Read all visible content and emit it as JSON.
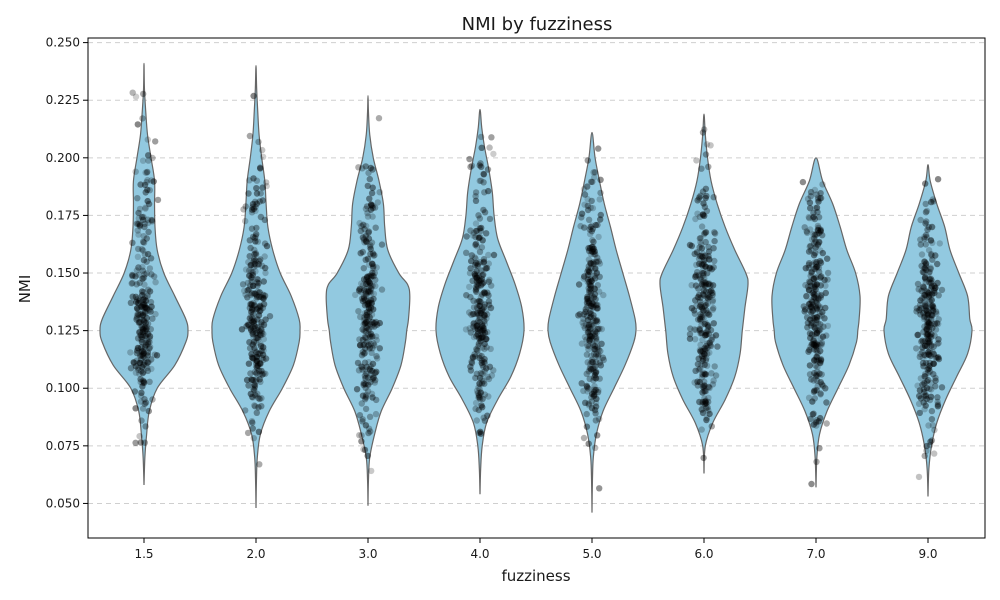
{
  "chart_data": {
    "type": "violin",
    "title": "NMI by fuzziness",
    "xlabel": "fuzziness",
    "ylabel": "NMI",
    "categories": [
      "1.5",
      "2.0",
      "3.0",
      "4.0",
      "5.0",
      "6.0",
      "7.0",
      "9.0"
    ],
    "ylim": [
      0.035,
      0.252
    ],
    "yticks": [
      0.05,
      0.075,
      0.1,
      0.125,
      0.15,
      0.175,
      0.2,
      0.225,
      0.25
    ],
    "grid": "y-dashed",
    "violin_color": "#92c9e0",
    "violin_edge_color": "#666666",
    "point_color": "#000000",
    "violins": [
      {
        "category": "1.5",
        "min": 0.058,
        "max": 0.241,
        "profile": [
          [
            0.058,
            0.0
          ],
          [
            0.07,
            0.02
          ],
          [
            0.08,
            0.06
          ],
          [
            0.09,
            0.12
          ],
          [
            0.1,
            0.3
          ],
          [
            0.11,
            0.7
          ],
          [
            0.12,
            0.95
          ],
          [
            0.125,
            1.0
          ],
          [
            0.13,
            0.95
          ],
          [
            0.14,
            0.7
          ],
          [
            0.15,
            0.45
          ],
          [
            0.16,
            0.3
          ],
          [
            0.17,
            0.25
          ],
          [
            0.18,
            0.24
          ],
          [
            0.19,
            0.24
          ],
          [
            0.2,
            0.16
          ],
          [
            0.21,
            0.08
          ],
          [
            0.22,
            0.04
          ],
          [
            0.23,
            0.01
          ],
          [
            0.241,
            0.0
          ]
        ]
      },
      {
        "category": "2.0",
        "min": 0.048,
        "max": 0.24,
        "profile": [
          [
            0.048,
            0.0
          ],
          [
            0.06,
            0.01
          ],
          [
            0.07,
            0.03
          ],
          [
            0.08,
            0.1
          ],
          [
            0.09,
            0.3
          ],
          [
            0.1,
            0.6
          ],
          [
            0.11,
            0.85
          ],
          [
            0.12,
            0.98
          ],
          [
            0.125,
            1.0
          ],
          [
            0.13,
            0.98
          ],
          [
            0.14,
            0.8
          ],
          [
            0.15,
            0.55
          ],
          [
            0.16,
            0.38
          ],
          [
            0.17,
            0.27
          ],
          [
            0.18,
            0.23
          ],
          [
            0.19,
            0.2
          ],
          [
            0.2,
            0.13
          ],
          [
            0.21,
            0.07
          ],
          [
            0.22,
            0.04
          ],
          [
            0.23,
            0.015
          ],
          [
            0.24,
            0.0
          ]
        ]
      },
      {
        "category": "3.0",
        "min": 0.049,
        "max": 0.227,
        "profile": [
          [
            0.049,
            0.0
          ],
          [
            0.06,
            0.01
          ],
          [
            0.07,
            0.04
          ],
          [
            0.08,
            0.15
          ],
          [
            0.09,
            0.3
          ],
          [
            0.1,
            0.55
          ],
          [
            0.11,
            0.75
          ],
          [
            0.12,
            0.85
          ],
          [
            0.125,
            0.88
          ],
          [
            0.13,
            0.92
          ],
          [
            0.14,
            0.95
          ],
          [
            0.145,
            0.9
          ],
          [
            0.15,
            0.7
          ],
          [
            0.16,
            0.45
          ],
          [
            0.17,
            0.38
          ],
          [
            0.18,
            0.35
          ],
          [
            0.19,
            0.25
          ],
          [
            0.2,
            0.12
          ],
          [
            0.21,
            0.04
          ],
          [
            0.22,
            0.01
          ],
          [
            0.227,
            0.0
          ]
        ]
      },
      {
        "category": "4.0",
        "min": 0.054,
        "max": 0.221,
        "profile": [
          [
            0.054,
            0.0
          ],
          [
            0.065,
            0.015
          ],
          [
            0.075,
            0.05
          ],
          [
            0.085,
            0.15
          ],
          [
            0.095,
            0.4
          ],
          [
            0.105,
            0.7
          ],
          [
            0.115,
            0.9
          ],
          [
            0.125,
            1.0
          ],
          [
            0.135,
            0.95
          ],
          [
            0.145,
            0.8
          ],
          [
            0.155,
            0.6
          ],
          [
            0.165,
            0.4
          ],
          [
            0.175,
            0.32
          ],
          [
            0.185,
            0.28
          ],
          [
            0.195,
            0.2
          ],
          [
            0.205,
            0.1
          ],
          [
            0.213,
            0.04
          ],
          [
            0.221,
            0.0
          ]
        ]
      },
      {
        "category": "5.0",
        "min": 0.046,
        "max": 0.211,
        "profile": [
          [
            0.046,
            0.0
          ],
          [
            0.06,
            0.01
          ],
          [
            0.07,
            0.03
          ],
          [
            0.08,
            0.1
          ],
          [
            0.09,
            0.25
          ],
          [
            0.1,
            0.5
          ],
          [
            0.11,
            0.75
          ],
          [
            0.12,
            0.95
          ],
          [
            0.125,
            1.0
          ],
          [
            0.13,
            0.98
          ],
          [
            0.14,
            0.85
          ],
          [
            0.15,
            0.7
          ],
          [
            0.16,
            0.55
          ],
          [
            0.17,
            0.42
          ],
          [
            0.18,
            0.28
          ],
          [
            0.19,
            0.17
          ],
          [
            0.2,
            0.07
          ],
          [
            0.211,
            0.0
          ]
        ]
      },
      {
        "category": "6.0",
        "min": 0.063,
        "max": 0.219,
        "profile": [
          [
            0.063,
            0.0
          ],
          [
            0.075,
            0.03
          ],
          [
            0.085,
            0.2
          ],
          [
            0.095,
            0.48
          ],
          [
            0.105,
            0.7
          ],
          [
            0.115,
            0.82
          ],
          [
            0.125,
            0.87
          ],
          [
            0.135,
            0.93
          ],
          [
            0.145,
            1.0
          ],
          [
            0.15,
            0.95
          ],
          [
            0.16,
            0.7
          ],
          [
            0.17,
            0.48
          ],
          [
            0.18,
            0.3
          ],
          [
            0.19,
            0.16
          ],
          [
            0.2,
            0.08
          ],
          [
            0.21,
            0.03
          ],
          [
            0.219,
            0.0
          ]
        ]
      },
      {
        "category": "7.0",
        "min": 0.057,
        "max": 0.2,
        "profile": [
          [
            0.057,
            0.0
          ],
          [
            0.07,
            0.02
          ],
          [
            0.08,
            0.08
          ],
          [
            0.09,
            0.25
          ],
          [
            0.1,
            0.5
          ],
          [
            0.11,
            0.75
          ],
          [
            0.12,
            0.92
          ],
          [
            0.125,
            0.95
          ],
          [
            0.13,
            0.98
          ],
          [
            0.14,
            1.0
          ],
          [
            0.15,
            0.9
          ],
          [
            0.16,
            0.7
          ],
          [
            0.17,
            0.55
          ],
          [
            0.18,
            0.38
          ],
          [
            0.19,
            0.15
          ],
          [
            0.2,
            0.0
          ]
        ]
      },
      {
        "category": "9.0",
        "min": 0.053,
        "max": 0.197,
        "profile": [
          [
            0.053,
            0.0
          ],
          [
            0.065,
            0.02
          ],
          [
            0.075,
            0.08
          ],
          [
            0.085,
            0.2
          ],
          [
            0.095,
            0.4
          ],
          [
            0.105,
            0.65
          ],
          [
            0.115,
            0.9
          ],
          [
            0.125,
            1.0
          ],
          [
            0.13,
            0.95
          ],
          [
            0.14,
            0.9
          ],
          [
            0.15,
            0.7
          ],
          [
            0.16,
            0.5
          ],
          [
            0.17,
            0.38
          ],
          [
            0.18,
            0.2
          ],
          [
            0.19,
            0.05
          ],
          [
            0.197,
            0.0
          ]
        ]
      }
    ]
  }
}
